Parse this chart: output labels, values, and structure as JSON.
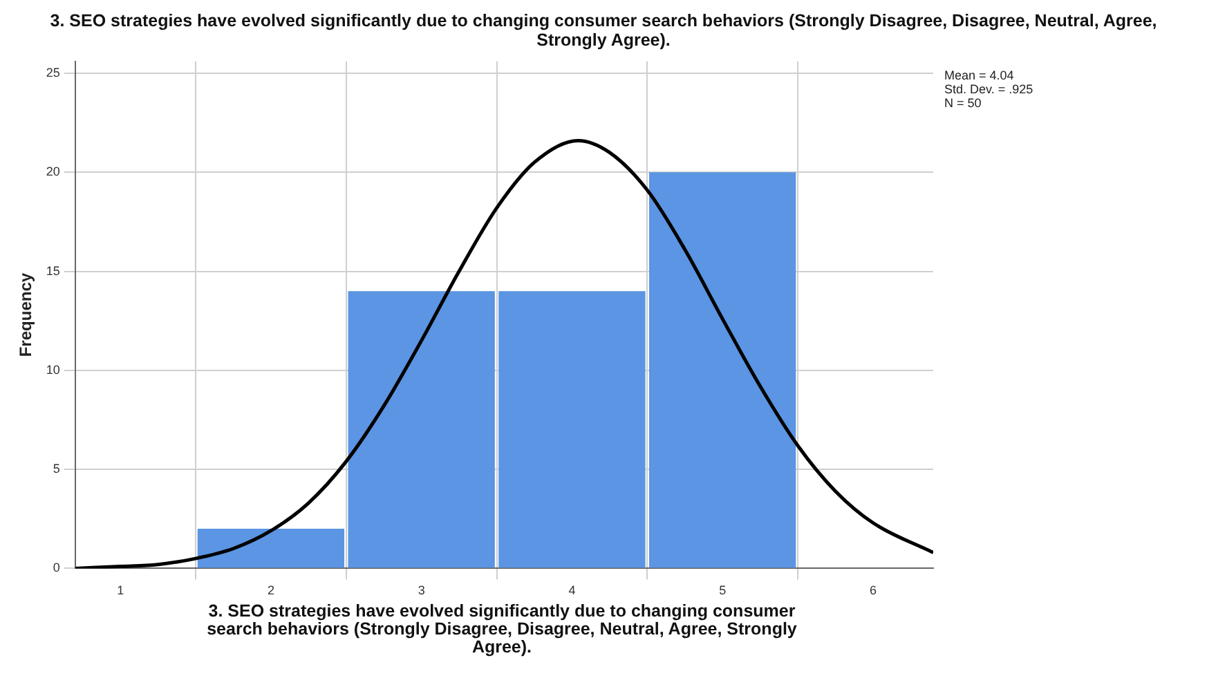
{
  "chart_data": {
    "type": "histogram",
    "title": "3. SEO strategies have evolved significantly due to changing consumer search behaviors (Strongly Disagree, Disagree, Neutral, Agree, Strongly Agree).",
    "xlabel": "3. SEO strategies have evolved significantly due to changing consumer search behaviors (Strongly Disagree, Disagree, Neutral, Agree, Strongly Agree).",
    "ylabel": "Frequency",
    "bins": [
      1.5,
      2.5,
      3.5,
      4.5,
      5.5
    ],
    "values": [
      2,
      14,
      14,
      20
    ],
    "color": "#5b95e3",
    "series": [
      {
        "type": "line",
        "color": "#000000",
        "x": [
          0.7,
          1.0,
          1.25,
          1.5,
          1.75,
          2.0,
          2.25,
          2.5,
          2.75,
          3.0,
          3.25,
          3.5,
          3.75,
          4.04,
          4.25,
          4.5,
          4.75,
          5.0,
          5.25,
          5.5,
          5.75,
          6.0,
          6.4
        ],
        "values": [
          0.0,
          0.1,
          0.2,
          0.5,
          1.0,
          1.9,
          3.3,
          5.4,
          8.2,
          11.5,
          15.0,
          18.2,
          20.5,
          21.6,
          21.0,
          19.1,
          16.1,
          12.6,
          9.2,
          6.2,
          3.9,
          2.3,
          0.8
        ]
      }
    ],
    "xlim": [
      0.7,
      6.4
    ],
    "xticks": [
      1,
      2,
      3,
      4,
      5,
      6
    ],
    "ylim": [
      0,
      25.6
    ],
    "yticks": [
      0,
      5,
      10,
      15,
      20,
      25
    ],
    "grid": true,
    "legend": false,
    "marker": "none",
    "annotations": [
      "Mean = 4.04",
      "Std. Dev. = .925",
      "N = 50"
    ]
  }
}
